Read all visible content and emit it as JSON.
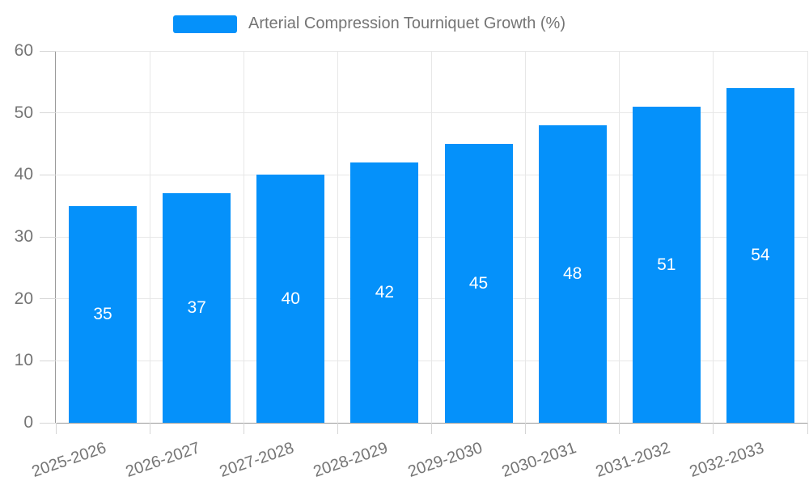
{
  "legend": {
    "label": "Arterial Compression Tourniquet Growth (%)"
  },
  "chart_data": {
    "type": "bar",
    "title": "Arterial Compression Tourniquet Growth (%)",
    "categories": [
      "2025-2026",
      "2026-2027",
      "2027-2028",
      "2028-2029",
      "2029-2030",
      "2030-2031",
      "2031-2032",
      "2032-2033"
    ],
    "values": [
      35,
      37,
      40,
      42,
      45,
      48,
      51,
      54
    ],
    "xlabel": "",
    "ylabel": "",
    "ylim": [
      0,
      60
    ],
    "y_ticks": [
      0,
      10,
      20,
      30,
      40,
      50,
      60
    ],
    "grid": true,
    "legend_position": "top",
    "value_labels": "centered-inside-bars",
    "x_label_rotation_deg": -19,
    "colors": {
      "bar": "#0591fa",
      "grid": "#e7e7e7",
      "tick": "#d6d6d6",
      "axis": "#9a9a9a",
      "text": "#757575",
      "value_label": "#ffffff",
      "background": "#ffffff"
    }
  }
}
